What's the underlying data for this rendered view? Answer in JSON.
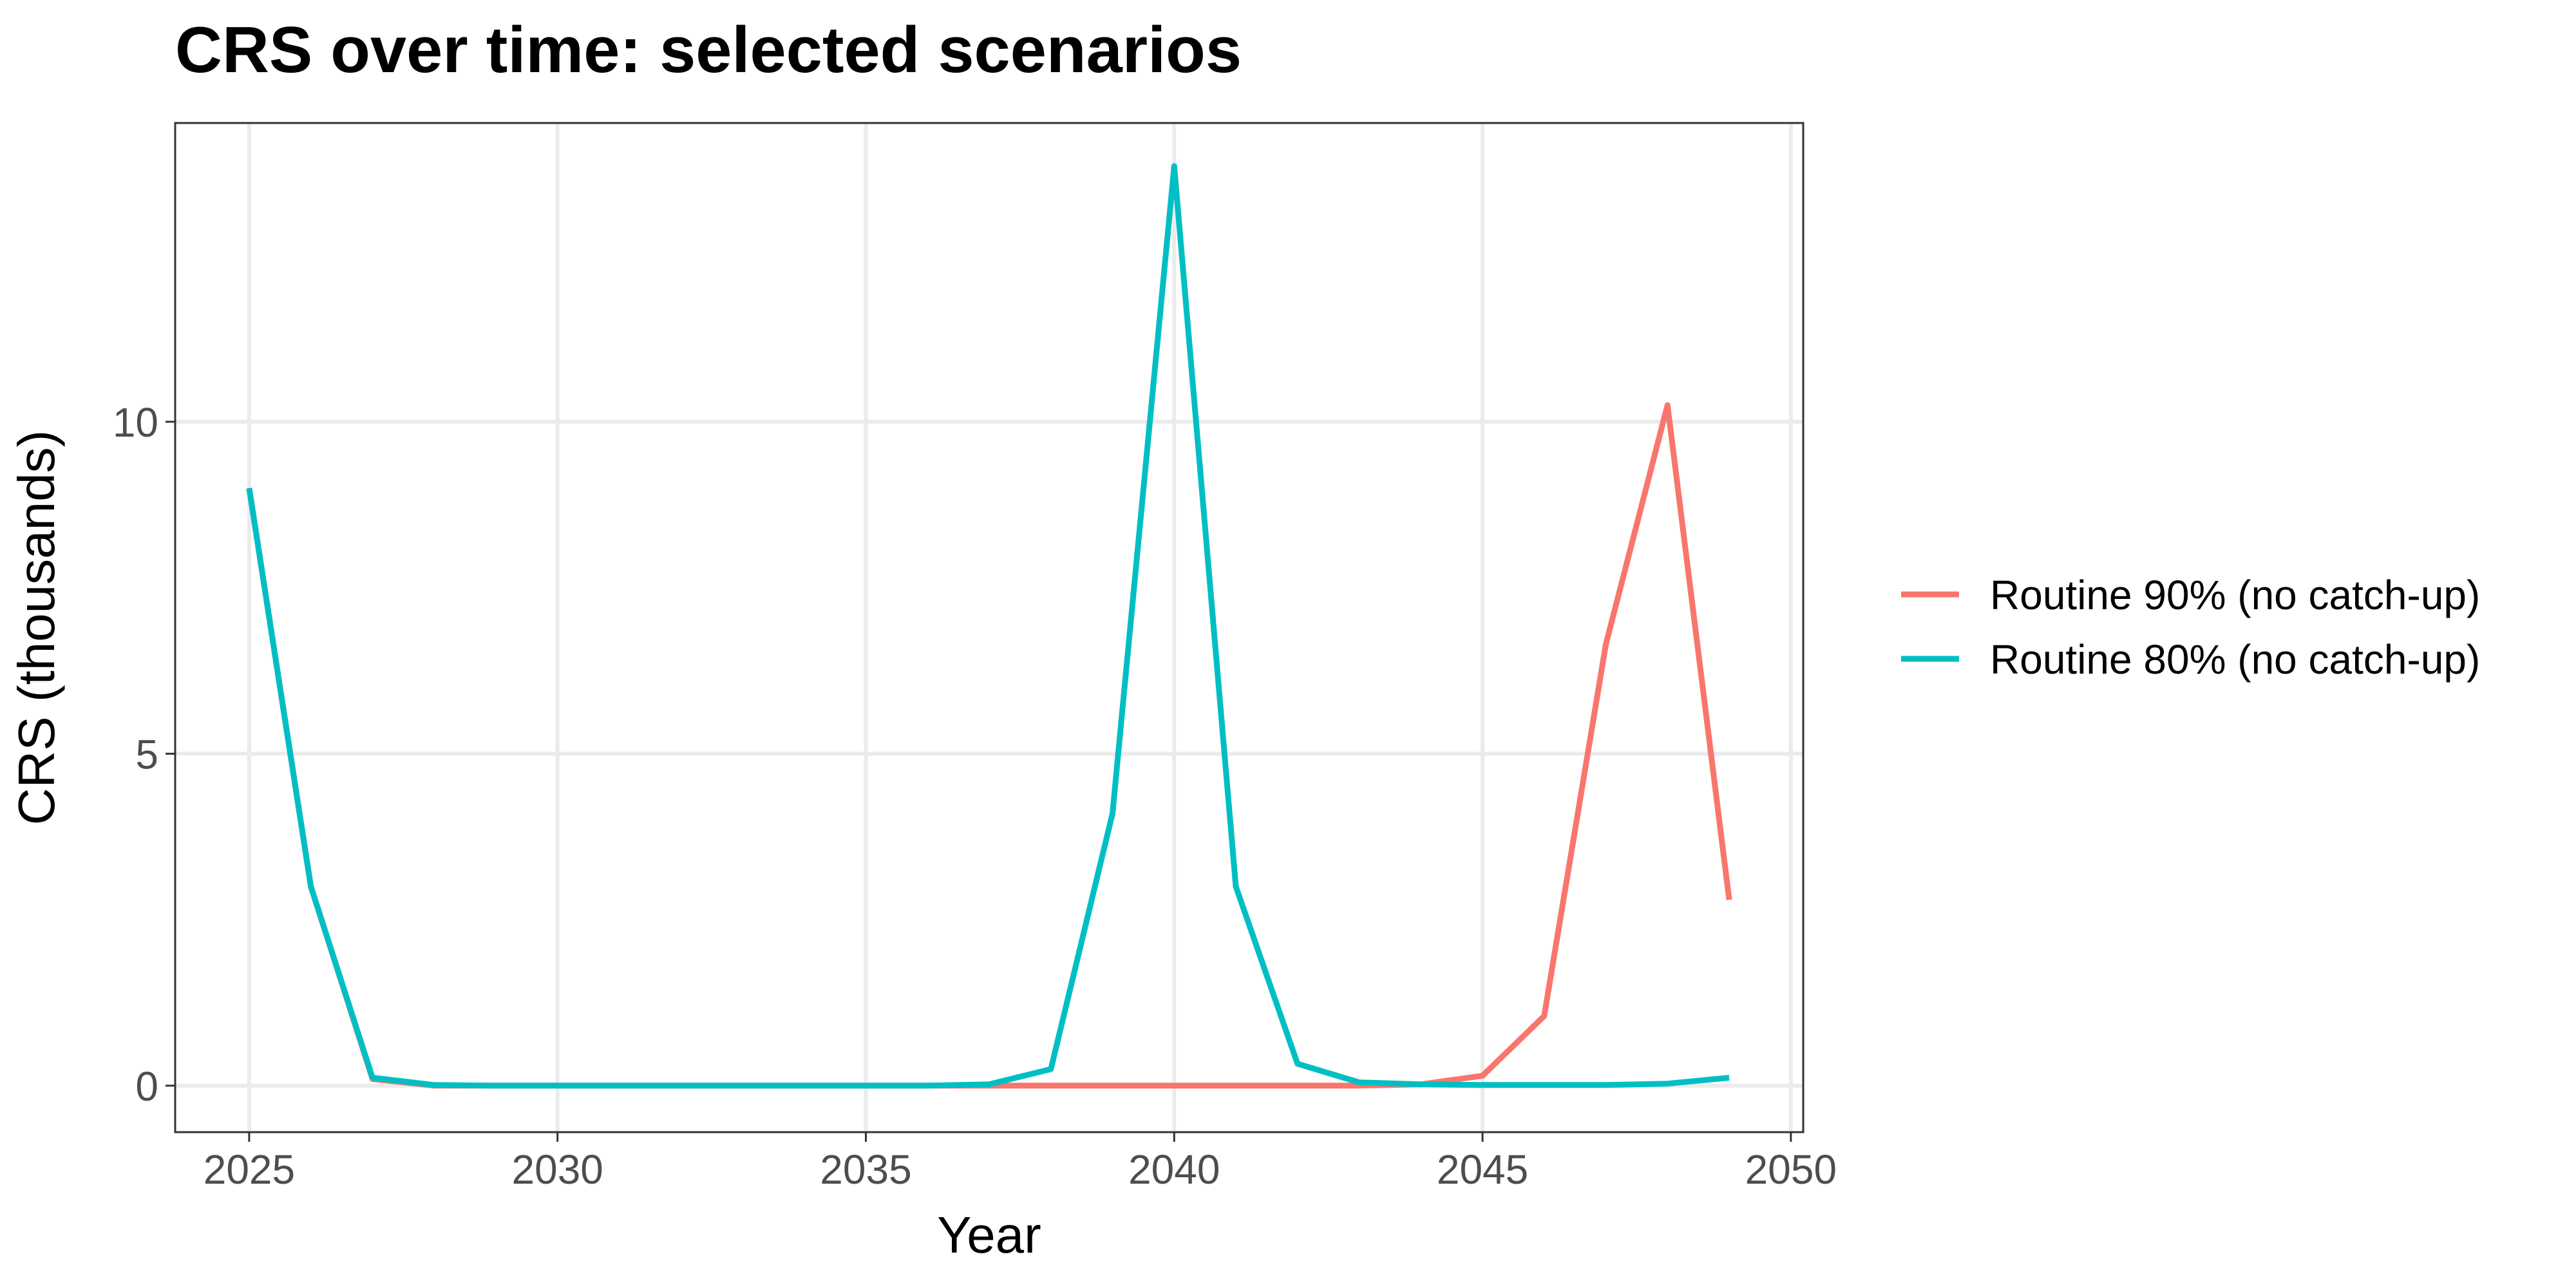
{
  "chart_data": {
    "type": "line",
    "title": "CRS over time: selected scenarios",
    "xlabel": "Year",
    "ylabel": "CRS (thousands)",
    "xlim": [
      2023.8,
      2050.2
    ],
    "ylim": [
      -0.7,
      14.5
    ],
    "x_ticks": [
      2025,
      2030,
      2035,
      2040,
      2045,
      2050
    ],
    "y_ticks": [
      0,
      5,
      10
    ],
    "grid": true,
    "legend_position": "right",
    "x": [
      2025,
      2026,
      2027,
      2028,
      2029,
      2030,
      2031,
      2032,
      2033,
      2034,
      2035,
      2036,
      2037,
      2038,
      2039,
      2040,
      2041,
      2042,
      2043,
      2044,
      2045,
      2046,
      2047,
      2048,
      2049
    ],
    "series": [
      {
        "name": "Routine 90% (no catch-up)",
        "color": "#F8766D",
        "values": [
          9.0,
          3.0,
          0.1,
          0.0,
          0.0,
          0.0,
          0.0,
          0.0,
          0.0,
          0.0,
          0.0,
          0.0,
          0.0,
          0.0,
          0.0,
          0.0,
          0.0,
          0.0,
          0.0,
          0.02,
          0.15,
          1.05,
          6.65,
          10.25,
          2.8
        ]
      },
      {
        "name": "Routine 80% (no catch-up)",
        "color": "#00BFC4",
        "values": [
          9.0,
          3.0,
          0.12,
          0.01,
          0.0,
          0.0,
          0.0,
          0.0,
          0.0,
          0.0,
          0.0,
          0.0,
          0.02,
          0.25,
          4.1,
          13.85,
          3.0,
          0.33,
          0.05,
          0.02,
          0.01,
          0.01,
          0.01,
          0.03,
          0.12
        ]
      }
    ]
  }
}
